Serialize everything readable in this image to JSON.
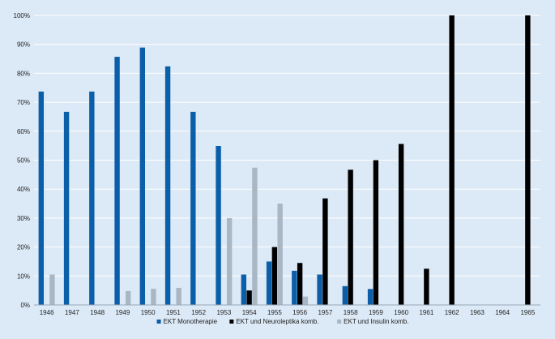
{
  "chart_data": {
    "type": "bar",
    "title": "",
    "xlabel": "",
    "ylabel": "",
    "ylim": [
      0,
      100
    ],
    "y_ticks": [
      "0%",
      "10%",
      "20%",
      "30%",
      "40%",
      "50%",
      "60%",
      "70%",
      "80%",
      "90%",
      "100%"
    ],
    "grid": true,
    "legend_position": "bottom",
    "categories": [
      "1946",
      "1947",
      "1948",
      "1949",
      "1950",
      "1951",
      "1952",
      "1953",
      "1954",
      "1955",
      "1956",
      "1957",
      "1958",
      "1959",
      "1960",
      "1961",
      "1962",
      "1963",
      "1964",
      "1965"
    ],
    "series": [
      {
        "name": "EKT Monotherapie",
        "color": "#0b5ea8",
        "values": [
          73.7,
          66.7,
          73.7,
          85.7,
          88.9,
          82.4,
          66.7,
          54.9,
          10.5,
          15.0,
          11.8,
          10.5,
          6.5,
          5.5,
          0,
          0,
          0,
          0,
          0,
          0
        ]
      },
      {
        "name": "EKT und Neuroleptika komb.",
        "color": "#000000",
        "values": [
          0,
          0,
          0,
          0,
          0,
          0,
          0,
          0,
          5.0,
          20.0,
          14.5,
          36.8,
          46.7,
          50.0,
          55.6,
          12.5,
          100,
          0,
          0,
          100
        ]
      },
      {
        "name": "EKT und Insulin komb.",
        "color": "#a9b7c4",
        "values": [
          10.5,
          0,
          0,
          4.8,
          5.6,
          5.9,
          0,
          30.0,
          47.4,
          35.0,
          2.9,
          0,
          0,
          0,
          0,
          0,
          0,
          0,
          0,
          0
        ]
      }
    ]
  }
}
